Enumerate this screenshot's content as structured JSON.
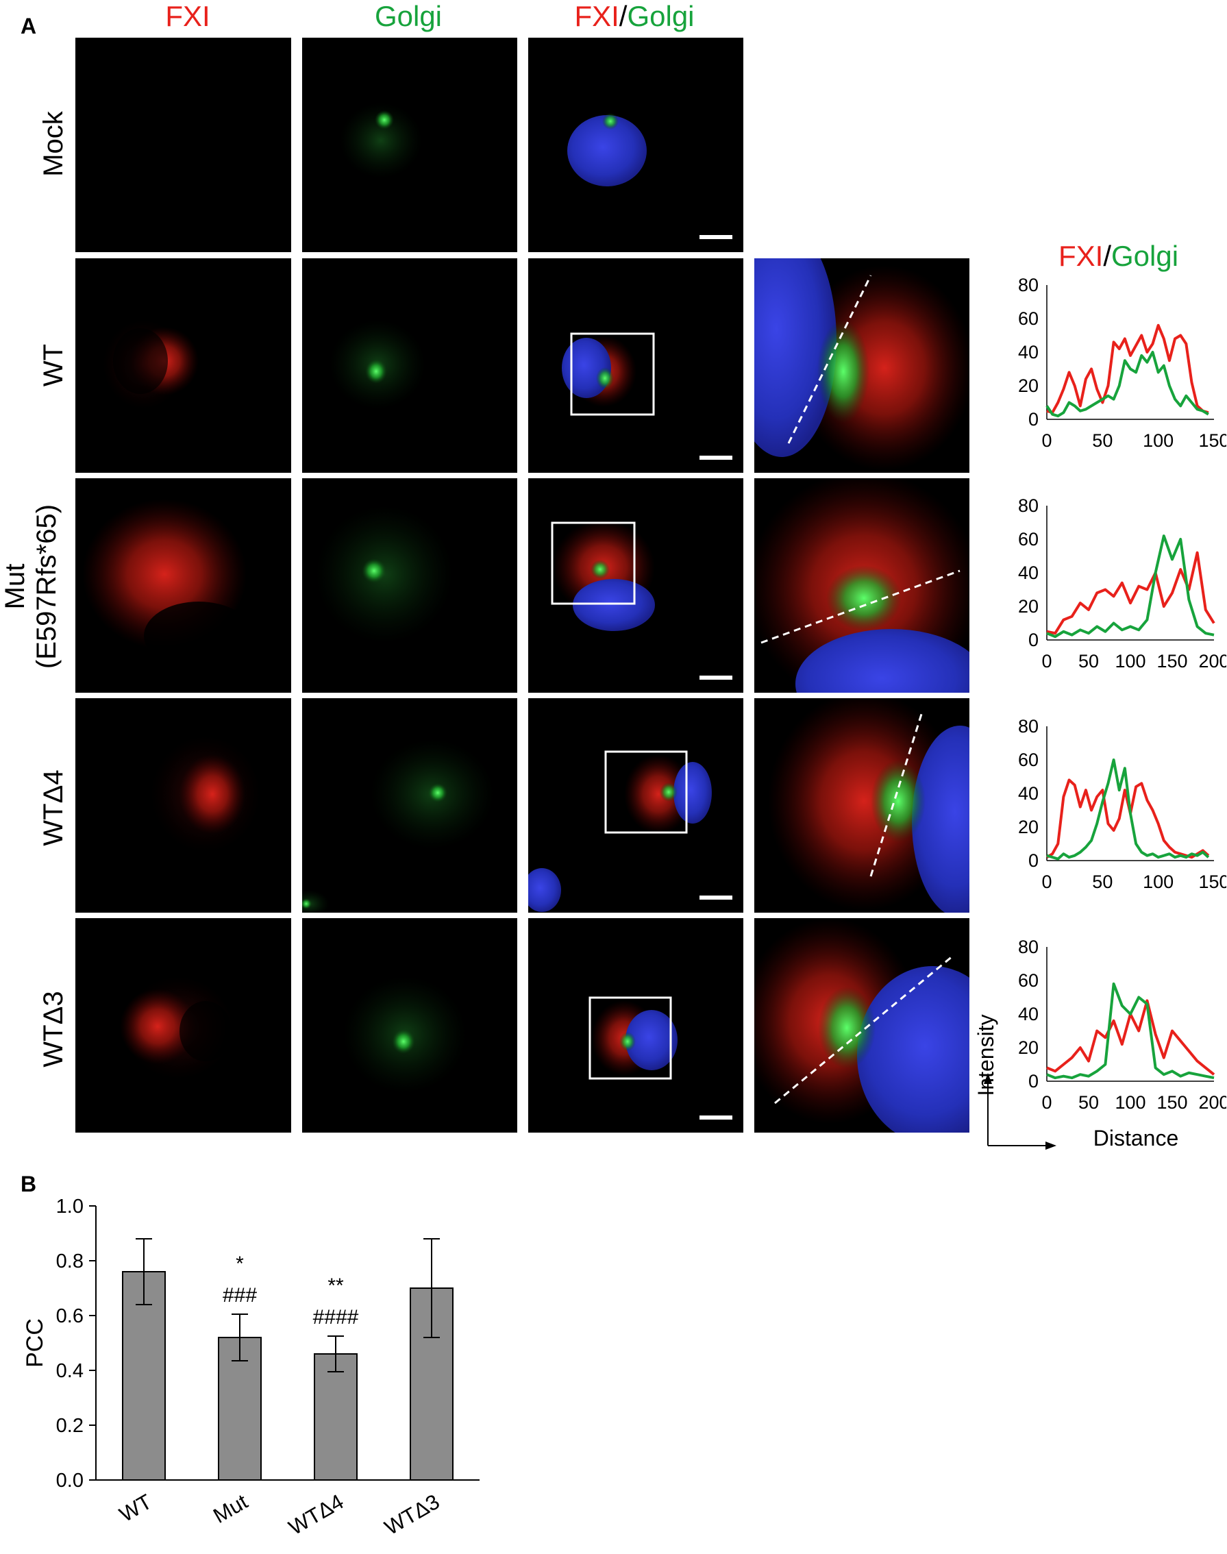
{
  "panels": {
    "a": "A",
    "b": "B"
  },
  "columns": {
    "fxi": "FXI",
    "golgi": "Golgi",
    "merge": {
      "fxi": "FXI",
      "sep": "/",
      "golgi": "Golgi"
    }
  },
  "profile_header": {
    "fxi": "FXI",
    "sep": "/",
    "golgi": "Golgi"
  },
  "rows": [
    {
      "label": "Mock"
    },
    {
      "label": "WT"
    },
    {
      "label_line1": "Mut",
      "label_line2": "(E597Rfs*65)"
    },
    {
      "label": "WTΔ4"
    },
    {
      "label": "WTΔ3"
    }
  ],
  "profile_axes": {
    "ylabel": "Intensity",
    "xlabel": "Distance"
  },
  "colors": {
    "red": "#e8211b",
    "green": "#17a33c",
    "blue": "#2a34c8",
    "bar": "#8c8c8c"
  },
  "chart_data": [
    {
      "type": "line",
      "panel": "WT profile",
      "ylim": [
        0,
        80
      ],
      "yticks": [
        0,
        20,
        40,
        60,
        80
      ],
      "xlim": [
        0,
        150
      ],
      "xticks": [
        0,
        50,
        100,
        150
      ],
      "series": [
        {
          "color": "red",
          "x": [
            0,
            5,
            10,
            15,
            20,
            25,
            30,
            35,
            40,
            45,
            50,
            55,
            60,
            65,
            70,
            75,
            80,
            85,
            90,
            95,
            100,
            105,
            110,
            115,
            120,
            125,
            130,
            135,
            140,
            145
          ],
          "y": [
            5,
            4,
            10,
            18,
            28,
            20,
            8,
            24,
            30,
            18,
            10,
            20,
            46,
            42,
            48,
            38,
            44,
            50,
            40,
            45,
            56,
            48,
            35,
            48,
            50,
            45,
            22,
            8,
            5,
            4
          ]
        },
        {
          "color": "green",
          "x": [
            0,
            5,
            10,
            15,
            20,
            25,
            30,
            35,
            40,
            45,
            50,
            55,
            60,
            65,
            70,
            75,
            80,
            85,
            90,
            95,
            100,
            105,
            110,
            115,
            120,
            125,
            130,
            135,
            140,
            145
          ],
          "y": [
            8,
            3,
            2,
            4,
            10,
            8,
            5,
            6,
            8,
            10,
            12,
            14,
            12,
            20,
            35,
            30,
            28,
            38,
            34,
            40,
            28,
            32,
            20,
            12,
            8,
            14,
            10,
            6,
            5,
            3
          ]
        }
      ]
    },
    {
      "type": "line",
      "panel": "Mut profile",
      "ylim": [
        0,
        80
      ],
      "yticks": [
        0,
        20,
        40,
        60,
        80
      ],
      "xlim": [
        0,
        200
      ],
      "xticks": [
        0,
        50,
        100,
        150,
        200
      ],
      "series": [
        {
          "color": "red",
          "x": [
            0,
            10,
            20,
            30,
            40,
            50,
            60,
            70,
            80,
            90,
            100,
            110,
            120,
            130,
            140,
            150,
            160,
            170,
            180,
            190,
            200
          ],
          "y": [
            5,
            4,
            12,
            14,
            22,
            18,
            28,
            30,
            26,
            34,
            22,
            32,
            30,
            40,
            20,
            28,
            42,
            30,
            52,
            18,
            10
          ]
        },
        {
          "color": "green",
          "x": [
            0,
            10,
            20,
            30,
            40,
            50,
            60,
            70,
            80,
            90,
            100,
            110,
            120,
            130,
            140,
            150,
            160,
            170,
            180,
            190,
            200
          ],
          "y": [
            4,
            2,
            5,
            3,
            6,
            4,
            8,
            5,
            10,
            6,
            8,
            6,
            12,
            40,
            62,
            48,
            60,
            24,
            8,
            4,
            3
          ]
        }
      ]
    },
    {
      "type": "line",
      "panel": "WTΔ4 profile",
      "ylim": [
        0,
        80
      ],
      "yticks": [
        0,
        20,
        40,
        60,
        80
      ],
      "xlim": [
        0,
        150
      ],
      "xticks": [
        0,
        50,
        100,
        150
      ],
      "series": [
        {
          "color": "red",
          "x": [
            0,
            5,
            10,
            15,
            20,
            25,
            30,
            35,
            40,
            45,
            50,
            55,
            60,
            65,
            70,
            75,
            80,
            85,
            90,
            95,
            100,
            105,
            110,
            115,
            120,
            125,
            130,
            135,
            140,
            145
          ],
          "y": [
            2,
            4,
            10,
            38,
            48,
            45,
            32,
            42,
            30,
            38,
            42,
            22,
            18,
            25,
            42,
            28,
            44,
            46,
            36,
            30,
            22,
            12,
            8,
            5,
            4,
            3,
            2,
            4,
            6,
            3
          ]
        },
        {
          "color": "green",
          "x": [
            0,
            5,
            10,
            15,
            20,
            25,
            30,
            35,
            40,
            45,
            50,
            55,
            60,
            65,
            70,
            75,
            80,
            85,
            90,
            95,
            100,
            105,
            110,
            115,
            120,
            125,
            130,
            135,
            140,
            145
          ],
          "y": [
            3,
            2,
            1,
            4,
            2,
            3,
            5,
            8,
            12,
            22,
            35,
            46,
            60,
            42,
            55,
            28,
            10,
            5,
            3,
            4,
            2,
            3,
            4,
            2,
            3,
            2,
            4,
            3,
            5,
            2
          ]
        }
      ]
    },
    {
      "type": "line",
      "panel": "WTΔ3 profile",
      "ylim": [
        0,
        80
      ],
      "yticks": [
        0,
        20,
        40,
        60,
        80
      ],
      "xlim": [
        0,
        200
      ],
      "xticks": [
        0,
        50,
        100,
        150,
        200
      ],
      "series": [
        {
          "color": "red",
          "x": [
            0,
            10,
            20,
            30,
            40,
            50,
            60,
            70,
            80,
            90,
            100,
            110,
            120,
            130,
            140,
            150,
            160,
            170,
            180,
            190,
            200
          ],
          "y": [
            8,
            6,
            10,
            14,
            20,
            12,
            30,
            26,
            36,
            22,
            40,
            30,
            48,
            28,
            14,
            30,
            24,
            18,
            12,
            8,
            4
          ]
        },
        {
          "color": "green",
          "x": [
            0,
            10,
            20,
            30,
            40,
            50,
            60,
            70,
            80,
            90,
            100,
            110,
            120,
            130,
            140,
            150,
            160,
            170,
            180,
            190,
            200
          ],
          "y": [
            4,
            2,
            3,
            2,
            4,
            3,
            6,
            10,
            58,
            45,
            40,
            50,
            46,
            8,
            4,
            6,
            3,
            5,
            4,
            3,
            2
          ]
        }
      ]
    },
    {
      "type": "bar",
      "panel": "B",
      "ylabel": "PCC",
      "ylim": [
        0,
        1.0
      ],
      "yticks": [
        "0.0",
        "0.2",
        "0.4",
        "0.6",
        "0.8",
        "1.0"
      ],
      "categories": [
        "WT",
        "Mut",
        "WTΔ4",
        "WTΔ3"
      ],
      "values": [
        0.76,
        0.52,
        0.46,
        0.7
      ],
      "errors": [
        0.12,
        0.085,
        0.065,
        0.18
      ],
      "annotations": [
        {
          "category": "Mut",
          "lines": [
            "*",
            "###"
          ]
        },
        {
          "category": "WTΔ4",
          "lines": [
            "**",
            "####"
          ]
        }
      ]
    }
  ]
}
